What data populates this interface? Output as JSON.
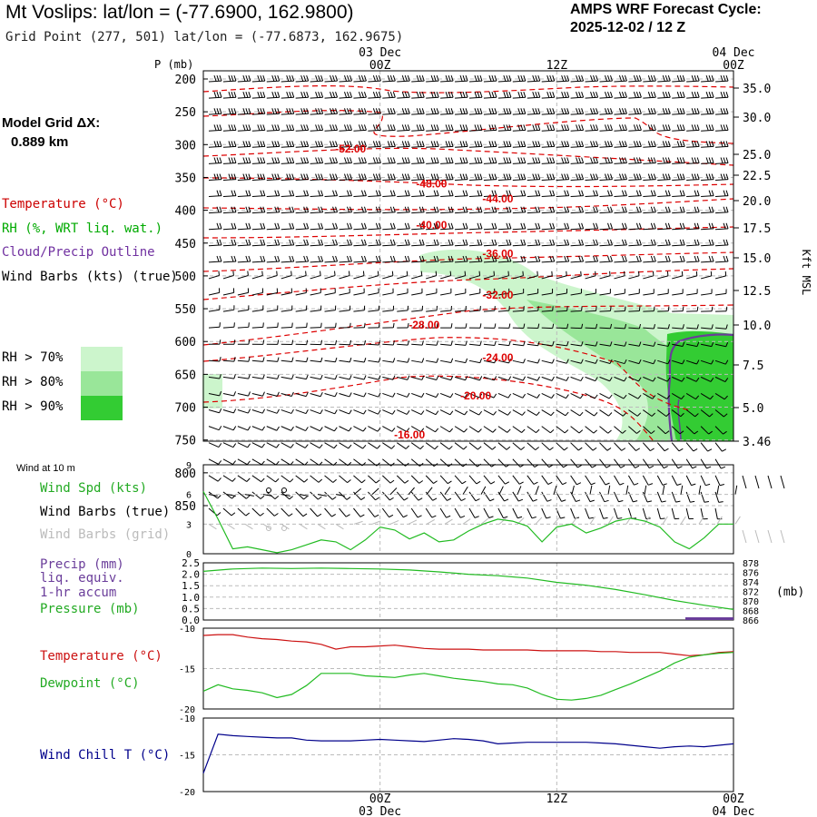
{
  "title": "Mt Voslips:  lat/lon = (-77.6900, 162.9800)",
  "grid_point": "Grid Point (277, 501) lat/lon = (-77.6873, 162.9675)",
  "cycle_line1": "AMPS WRF Forecast Cycle:",
  "cycle_line2": "2025-12-02 / 12  Z",
  "model_grid_label": "Model Grid ΔX:",
  "model_grid_value": "0.889 km",
  "legend": {
    "temperature": "Temperature (°C)",
    "rh": "RH (%, WRT liq. wat.)",
    "cloud": "Cloud/Precip Outline",
    "wind": "Wind Barbs (kts) (true)",
    "rh70": "RH > 70%",
    "rh80": "RH > 80%",
    "rh90": "RH > 90%"
  },
  "colors": {
    "temperature": "#dd0000",
    "rh70": "#ccf5cc",
    "rh80": "#99e699",
    "rh90": "#33cc33",
    "cloud": "#6a3d9a",
    "wind_chill": "#00008b",
    "dewpoint": "#22bb22"
  },
  "chart_data": [
    {
      "type": "heatmap",
      "name": "cross-section",
      "ylabel": "P (mb)",
      "y_ticks": [
        "200",
        "250",
        "300",
        "350",
        "400",
        "450",
        "500",
        "550",
        "600",
        "650",
        "700",
        "750",
        "800",
        "850"
      ],
      "right_ticks": [
        "35.0",
        "30.0",
        "25.0",
        "22.5",
        "20.0",
        "17.5",
        "15.0",
        "12.5",
        "10.0",
        "7.5",
        "5.0",
        "3.46"
      ],
      "right_axis_label": "Kft MSL",
      "x_top_labels": [
        {
          "top": "03 Dec",
          "bottom": "00Z",
          "hour": 12
        },
        {
          "top": "",
          "bottom": "12Z",
          "hour": 24
        },
        {
          "top": "04 Dec",
          "bottom": "00Z",
          "hour": 36
        }
      ],
      "xlim_hours": [
        0,
        36
      ],
      "ylim_mb": [
        200,
        870
      ],
      "temperature_contours": [
        {
          "label": "-52.00",
          "value": -52,
          "label_hour": 10.0,
          "label_p": 312
        },
        {
          "label": "-48.00",
          "value": -48,
          "label_hour": 15.5,
          "label_p": 365
        },
        {
          "label": "-44.00",
          "value": -44,
          "label_hour": 20.0,
          "label_p": 388
        },
        {
          "label": "-40.00",
          "value": -40,
          "label_hour": 15.5,
          "label_p": 428
        },
        {
          "label": "-36.00",
          "value": -36,
          "label_hour": 20.0,
          "label_p": 472
        },
        {
          "label": "-32.00",
          "value": -32,
          "label_hour": 20.0,
          "label_p": 535
        },
        {
          "label": "-28.00",
          "value": -28,
          "label_hour": 15.0,
          "label_p": 580
        },
        {
          "label": "-24.00",
          "value": -24,
          "label_hour": 20.0,
          "label_p": 630
        },
        {
          "label": "-20.00",
          "value": -20,
          "label_hour": 18.5,
          "label_p": 688
        },
        {
          "label": "-16.00",
          "value": -16,
          "label_hour": 14.0,
          "label_p": 748
        }
      ]
    },
    {
      "type": "line",
      "name": "wind-10m",
      "header": "Wind at 10 m",
      "labels": [
        "Wind Spd (kts)",
        "Wind Barbs (true)",
        "Wind Barbs (grid)"
      ],
      "y_ticks": [
        "9",
        "6",
        "3",
        "0"
      ],
      "ylim": [
        0,
        9
      ],
      "x": [
        0,
        1,
        2,
        3,
        4,
        5,
        6,
        7,
        8,
        9,
        10,
        11,
        12,
        13,
        14,
        15,
        16,
        17,
        18,
        19,
        20,
        21,
        22,
        23,
        24,
        25,
        26,
        27,
        28,
        29,
        30,
        31,
        32,
        33,
        34,
        35,
        36
      ],
      "series": [
        {
          "name": "Wind Spd (kts)",
          "values": [
            6.3,
            3.5,
            0.5,
            0.7,
            0.4,
            0.1,
            0.4,
            0.9,
            1.4,
            1.2,
            0.4,
            1.4,
            2.7,
            2.4,
            1.5,
            2.1,
            1.2,
            1.4,
            2.3,
            3.0,
            3.5,
            3.3,
            2.8,
            1.2,
            2.7,
            3.0,
            2.1,
            2.6,
            3.3,
            3.6,
            3.3,
            2.7,
            1.2,
            0.5,
            1.6,
            3.0,
            3.0
          ]
        }
      ]
    },
    {
      "type": "line",
      "name": "precip-pressure",
      "labels": [
        "Precip (mm)",
        "liq. equiv.",
        "1-hr accum",
        "Pressure (mb)"
      ],
      "left_ticks": [
        "2.5",
        "2.0",
        "1.5",
        "1.0",
        "0.5",
        "0.0"
      ],
      "right_ticks": [
        "878",
        "876",
        "874",
        "872",
        "870",
        "868",
        "866"
      ],
      "right_unit": "(mb)",
      "ylim_left": [
        0,
        2.5
      ],
      "ylim_right": [
        866,
        878
      ],
      "x": [
        0,
        2,
        4,
        6,
        8,
        10,
        12,
        14,
        16,
        18,
        20,
        22,
        24,
        26,
        28,
        30,
        32,
        34,
        36
      ],
      "series": [
        {
          "name": "Pressure (mb)",
          "values": [
            876.2,
            876.7,
            876.9,
            876.8,
            876.9,
            876.8,
            876.7,
            876.5,
            876.1,
            875.6,
            875.3,
            874.8,
            873.9,
            873.3,
            872.4,
            871.3,
            870.1,
            869.1,
            868.2
          ]
        },
        {
          "name": "Precip (mm)",
          "values": [
            0,
            0,
            0,
            0,
            0,
            0,
            0,
            0,
            0,
            0,
            0,
            0,
            0,
            0,
            0,
            0,
            0,
            0.08,
            0.1
          ]
        }
      ]
    },
    {
      "type": "line",
      "name": "temp-dewpoint",
      "labels": [
        "Temperature (°C)",
        "Dewpoint (°C)"
      ],
      "y_ticks": [
        "-10",
        "-15",
        "-20"
      ],
      "ylim": [
        -20,
        -10
      ],
      "x": [
        0,
        1,
        2,
        3,
        4,
        5,
        6,
        7,
        8,
        9,
        10,
        11,
        12,
        13,
        14,
        15,
        16,
        17,
        18,
        19,
        20,
        21,
        22,
        23,
        24,
        25,
        26,
        27,
        28,
        29,
        30,
        31,
        32,
        33,
        34,
        35,
        36
      ],
      "series": [
        {
          "name": "Temperature (°C)",
          "values": [
            -10.9,
            -10.8,
            -10.8,
            -11.1,
            -11.3,
            -11.4,
            -11.6,
            -11.7,
            -12.0,
            -12.6,
            -12.3,
            -12.3,
            -12.2,
            -12.1,
            -12.3,
            -12.5,
            -12.6,
            -12.6,
            -12.6,
            -12.7,
            -12.7,
            -12.7,
            -12.7,
            -12.8,
            -12.8,
            -12.8,
            -12.8,
            -12.9,
            -12.9,
            -13.0,
            -13.0,
            -13.0,
            -13.2,
            -13.4,
            -13.3,
            -13.0,
            -12.9
          ]
        },
        {
          "name": "Dewpoint (°C)",
          "values": [
            -17.8,
            -17.0,
            -17.5,
            -17.7,
            -18.0,
            -18.6,
            -18.2,
            -17.1,
            -15.6,
            -15.6,
            -15.6,
            -15.9,
            -16.0,
            -16.1,
            -15.8,
            -15.6,
            -15.9,
            -16.2,
            -16.4,
            -16.6,
            -16.9,
            -17.0,
            -17.4,
            -18.2,
            -18.8,
            -18.9,
            -18.7,
            -18.3,
            -17.6,
            -16.9,
            -16.1,
            -15.3,
            -14.3,
            -13.6,
            -13.3,
            -13.1,
            -13.0
          ]
        }
      ]
    },
    {
      "type": "line",
      "name": "wind-chill",
      "labels": [
        "Wind Chill T (°C)"
      ],
      "y_ticks": [
        "-10",
        "-15",
        "-20"
      ],
      "ylim": [
        -20,
        -10
      ],
      "x_bottom_labels": [
        {
          "top": "00Z",
          "bottom": "03 Dec",
          "hour": 12
        },
        {
          "top": "12Z",
          "bottom": "",
          "hour": 24
        },
        {
          "top": "00Z",
          "bottom": "04 Dec",
          "hour": 36
        }
      ],
      "x": [
        0,
        1,
        2,
        3,
        4,
        5,
        6,
        7,
        8,
        9,
        10,
        11,
        12,
        13,
        14,
        15,
        16,
        17,
        18,
        19,
        20,
        21,
        22,
        23,
        24,
        25,
        26,
        27,
        28,
        29,
        30,
        31,
        32,
        33,
        34,
        35,
        36
      ],
      "series": [
        {
          "name": "Wind Chill T (°C)",
          "values": [
            -17.5,
            -12.2,
            -12.4,
            -12.5,
            -12.6,
            -12.7,
            -12.7,
            -13.0,
            -13.1,
            -13.1,
            -13.1,
            -13.0,
            -12.9,
            -13.0,
            -13.1,
            -13.2,
            -13.0,
            -12.8,
            -12.9,
            -13.1,
            -13.5,
            -13.4,
            -13.3,
            -13.3,
            -13.3,
            -13.3,
            -13.3,
            -13.4,
            -13.5,
            -13.7,
            -13.9,
            -14.1,
            -13.9,
            -13.8,
            -13.9,
            -13.7,
            -13.5
          ]
        }
      ]
    }
  ]
}
